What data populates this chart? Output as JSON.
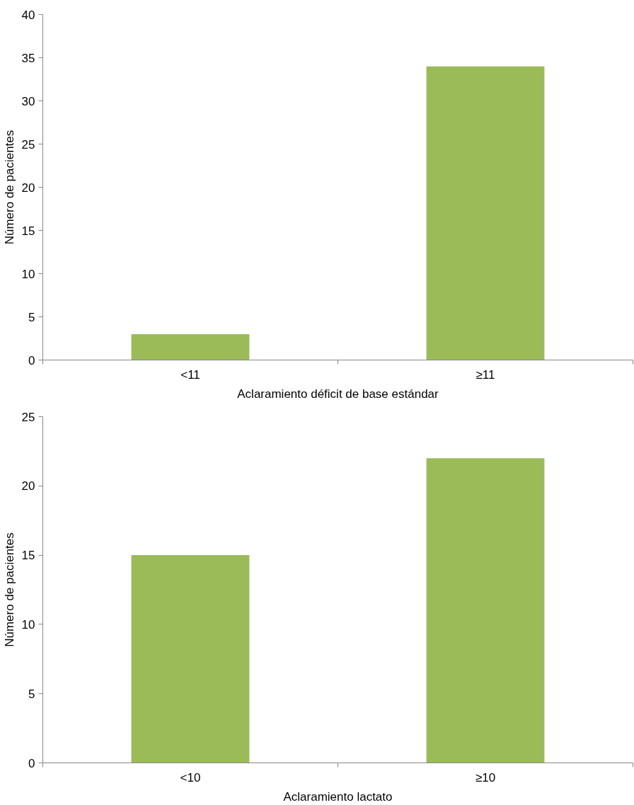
{
  "chart_data": [
    {
      "type": "bar",
      "categories": [
        "<11",
        "≥11"
      ],
      "values": [
        3,
        34
      ],
      "color": "#9bbb59",
      "xlabel": "Aclaramiento déficit de base estándar",
      "ylabel": "Número de pacientes",
      "ylim": [
        0,
        40
      ],
      "yticks": [
        0,
        5,
        10,
        15,
        20,
        25,
        30,
        35,
        40
      ],
      "grid": false
    },
    {
      "type": "bar",
      "categories": [
        "<10",
        "≥10"
      ],
      "values": [
        15,
        22
      ],
      "color": "#9bbb59",
      "xlabel": "Aclaramiento lactato",
      "ylabel": "Número de pacientes",
      "ylim": [
        0,
        25
      ],
      "yticks": [
        0,
        5,
        10,
        15,
        20,
        25
      ],
      "grid": false
    }
  ]
}
